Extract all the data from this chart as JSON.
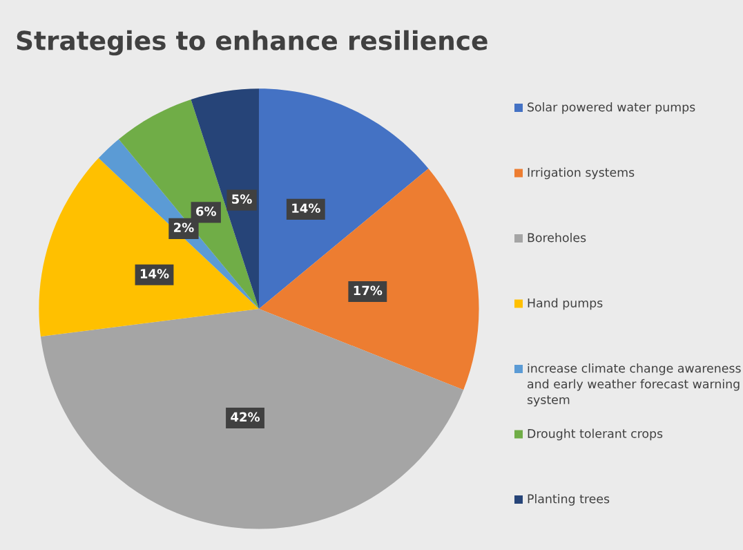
{
  "chart_data": {
    "type": "pie",
    "title": "Strategies to enhance resilience",
    "categories": [
      "Solar powered water pumps",
      "Irrigation systems",
      "Boreholes",
      "Hand pumps",
      "increase climate change awareness and early weather forecast warning system",
      "Drought tolerant crops",
      "Planting trees"
    ],
    "values": [
      14,
      17,
      42,
      14,
      2,
      6,
      5
    ],
    "value_labels": [
      "14%",
      "17%",
      "42%",
      "14%",
      "2%",
      "6%",
      "5%"
    ],
    "colors": [
      "#4472c4",
      "#ed7d31",
      "#a5a5a5",
      "#ffc000",
      "#5b9bd5",
      "#70ad47",
      "#264478"
    ],
    "legend": "right"
  }
}
